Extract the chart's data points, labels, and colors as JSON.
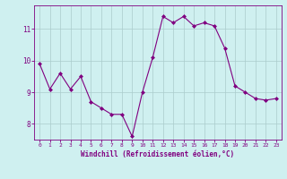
{
  "x": [
    0,
    1,
    2,
    3,
    4,
    5,
    6,
    7,
    8,
    9,
    10,
    11,
    12,
    13,
    14,
    15,
    16,
    17,
    18,
    19,
    20,
    21,
    22,
    23
  ],
  "y": [
    9.9,
    9.1,
    9.6,
    9.1,
    9.5,
    8.7,
    8.5,
    8.3,
    8.3,
    7.6,
    9.0,
    10.1,
    11.4,
    11.2,
    11.4,
    11.1,
    11.2,
    11.1,
    10.4,
    9.2,
    9.0,
    8.8,
    8.75,
    8.8
  ],
  "line_color": "#800080",
  "marker": "D",
  "marker_size": 2,
  "bg_color": "#cff0f0",
  "grid_color": "#aacccc",
  "xlabel": "Windchill (Refroidissement éolien,°C)",
  "ylabel": "",
  "ylim": [
    7.5,
    11.75
  ],
  "xlim": [
    -0.5,
    23.5
  ],
  "yticks": [
    8,
    9,
    10,
    11
  ],
  "xticks": [
    0,
    1,
    2,
    3,
    4,
    5,
    6,
    7,
    8,
    9,
    10,
    11,
    12,
    13,
    14,
    15,
    16,
    17,
    18,
    19,
    20,
    21,
    22,
    23
  ],
  "tick_color": "#800080",
  "label_color": "#800080",
  "title": ""
}
